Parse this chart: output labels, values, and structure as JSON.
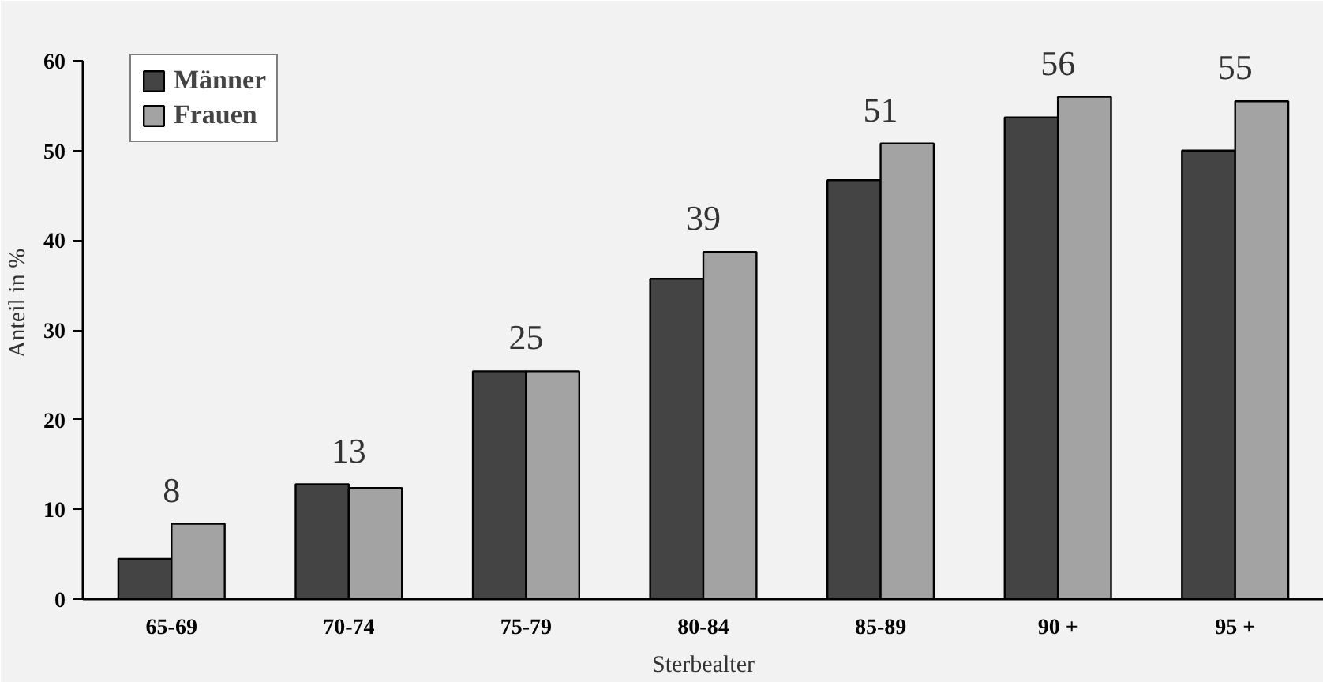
{
  "chart_data": {
    "type": "bar",
    "xlabel": "Sterbealter",
    "ylabel": "Anteil in %",
    "categories": [
      "65-69",
      "70-74",
      "75-79",
      "80-84",
      "85-89",
      "90 +",
      "95 +"
    ],
    "series": [
      {
        "name": "Männer",
        "color": "#444444",
        "values": [
          4.5,
          12.8,
          25.4,
          35.7,
          46.7,
          53.7,
          50.0
        ]
      },
      {
        "name": "Frauen",
        "color": "#a3a3a3",
        "values": [
          8.4,
          12.4,
          25.4,
          38.7,
          50.8,
          56.0,
          55.5
        ]
      }
    ],
    "ylim": [
      0,
      60
    ],
    "yticks": [
      0,
      10,
      20,
      30,
      40,
      50,
      60
    ],
    "annotations": [
      "8",
      "13",
      "25",
      "39",
      "51",
      "56",
      "55"
    ],
    "legend": "top left",
    "grid": false
  }
}
